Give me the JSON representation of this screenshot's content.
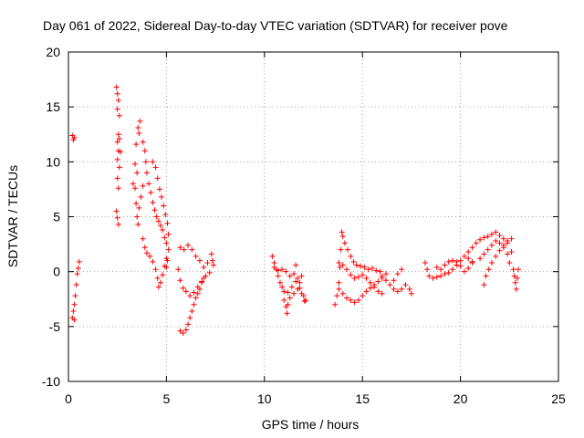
{
  "chart_data": {
    "type": "scatter",
    "title": "Day 061 of 2022, Sidereal Day-to-day VTEC variation (SDTVAR) for receiver pove",
    "xlabel": "GPS time / hours",
    "ylabel": "SDTVAR / TECUs",
    "xlim": [
      0,
      25
    ],
    "ylim": [
      -10,
      20
    ],
    "xticks": [
      "0",
      "5",
      "10",
      "15",
      "20",
      "25"
    ],
    "yticks": [
      "-10",
      "-5",
      "0",
      "5",
      "10",
      "15",
      "20"
    ],
    "xtick_values": [
      0,
      5,
      10,
      15,
      20,
      25
    ],
    "ytick_values": [
      -10,
      -5,
      0,
      5,
      10,
      15,
      20
    ],
    "grid": true,
    "marker": "+",
    "color": "#ff0000",
    "series": [
      {
        "name": "SDTVAR",
        "points": [
          [
            0.2,
            12.4
          ],
          [
            0.25,
            12.0
          ],
          [
            0.3,
            12.2
          ],
          [
            0.2,
            -4.2
          ],
          [
            0.25,
            -3.6
          ],
          [
            0.3,
            -3.0
          ],
          [
            0.35,
            -2.2
          ],
          [
            0.4,
            -1.2
          ],
          [
            0.45,
            -0.2
          ],
          [
            0.5,
            0.3
          ],
          [
            0.55,
            0.9
          ],
          [
            0.3,
            -4.4
          ],
          [
            2.45,
            16.8
          ],
          [
            2.5,
            16.2
          ],
          [
            2.55,
            15.6
          ],
          [
            2.5,
            14.8
          ],
          [
            2.6,
            14.2
          ],
          [
            2.55,
            12.5
          ],
          [
            2.5,
            11.8
          ],
          [
            2.55,
            11.0
          ],
          [
            2.5,
            10.2
          ],
          [
            2.6,
            9.5
          ],
          [
            2.5,
            8.5
          ],
          [
            2.55,
            7.6
          ],
          [
            2.45,
            5.5
          ],
          [
            2.5,
            4.9
          ],
          [
            2.55,
            4.3
          ],
          [
            2.65,
            10.9
          ],
          [
            2.6,
            12.1
          ],
          [
            3.3,
            8.0
          ],
          [
            3.4,
            9.8
          ],
          [
            3.45,
            11.6
          ],
          [
            3.55,
            13.1
          ],
          [
            3.65,
            13.7
          ],
          [
            3.6,
            12.6
          ],
          [
            3.5,
            9.0
          ],
          [
            3.4,
            7.6
          ],
          [
            3.45,
            6.2
          ],
          [
            3.5,
            5.0
          ],
          [
            3.55,
            4.3
          ],
          [
            3.6,
            5.8
          ],
          [
            3.7,
            6.8
          ],
          [
            3.8,
            7.8
          ],
          [
            3.8,
            11.8
          ],
          [
            3.9,
            11.0
          ],
          [
            3.95,
            10.0
          ],
          [
            4.0,
            9.0
          ],
          [
            4.1,
            8.0
          ],
          [
            4.2,
            7.2
          ],
          [
            4.3,
            6.3
          ],
          [
            4.4,
            5.6
          ],
          [
            4.5,
            5.0
          ],
          [
            4.6,
            4.6
          ],
          [
            4.7,
            4.2
          ],
          [
            4.8,
            3.8
          ],
          [
            4.9,
            3.1
          ],
          [
            5.0,
            2.6
          ],
          [
            4.3,
            10.0
          ],
          [
            4.45,
            9.5
          ],
          [
            4.55,
            8.5
          ],
          [
            4.65,
            7.5
          ],
          [
            4.75,
            6.8
          ],
          [
            4.85,
            6.0
          ],
          [
            4.95,
            5.2
          ],
          [
            5.05,
            4.4
          ],
          [
            5.1,
            3.4
          ],
          [
            5.1,
            2.0
          ],
          [
            5.05,
            1.0
          ],
          [
            5.0,
            0.4
          ],
          [
            3.8,
            3.0
          ],
          [
            3.9,
            2.2
          ],
          [
            4.0,
            1.7
          ],
          [
            4.15,
            1.4
          ],
          [
            4.3,
            0.9
          ],
          [
            4.45,
            0.2
          ],
          [
            4.55,
            -0.6
          ],
          [
            4.6,
            -1.4
          ],
          [
            4.7,
            -1.0
          ],
          [
            4.8,
            -0.3
          ],
          [
            4.9,
            0.5
          ],
          [
            5.0,
            1.2
          ],
          [
            5.7,
            2.2
          ],
          [
            5.9,
            2.0
          ],
          [
            6.1,
            2.4
          ],
          [
            6.3,
            2.0
          ],
          [
            6.5,
            1.4
          ],
          [
            6.7,
            1.0
          ],
          [
            6.9,
            0.4
          ],
          [
            7.1,
            0.8
          ],
          [
            7.3,
            1.6
          ],
          [
            7.35,
            1.0
          ],
          [
            5.6,
            0.2
          ],
          [
            5.7,
            -0.8
          ],
          [
            5.85,
            -1.5
          ],
          [
            6.0,
            -1.8
          ],
          [
            6.2,
            -2.2
          ],
          [
            6.4,
            -1.9
          ],
          [
            6.6,
            -1.4
          ],
          [
            6.8,
            -0.9
          ],
          [
            7.0,
            -0.4
          ],
          [
            7.2,
            -0.1
          ],
          [
            7.4,
            0.6
          ],
          [
            5.7,
            -5.4
          ],
          [
            5.85,
            -5.6
          ],
          [
            6.0,
            -5.3
          ],
          [
            6.1,
            -4.8
          ],
          [
            6.2,
            -4.2
          ],
          [
            6.3,
            -3.6
          ],
          [
            6.4,
            -3.0
          ],
          [
            6.5,
            -2.4
          ],
          [
            6.6,
            -2.0
          ],
          [
            6.7,
            -1.6
          ],
          [
            6.8,
            -1.0
          ],
          [
            6.9,
            -0.6
          ],
          [
            10.4,
            1.4
          ],
          [
            10.5,
            0.8
          ],
          [
            10.6,
            0.2
          ],
          [
            10.7,
            -0.4
          ],
          [
            10.8,
            -1.0
          ],
          [
            10.9,
            -1.4
          ],
          [
            11.0,
            -1.8
          ],
          [
            11.2,
            -1.9
          ],
          [
            11.4,
            -1.4
          ],
          [
            11.6,
            -0.9
          ],
          [
            11.8,
            -1.5
          ],
          [
            12.0,
            -2.2
          ],
          [
            12.1,
            -2.6
          ],
          [
            10.5,
            0.4
          ],
          [
            10.7,
            0.1
          ],
          [
            10.9,
            0.2
          ],
          [
            11.1,
            0.0
          ],
          [
            11.3,
            -0.4
          ],
          [
            11.5,
            -0.2
          ],
          [
            11.6,
            0.6
          ],
          [
            11.7,
            -0.6
          ],
          [
            11.8,
            -1.0
          ],
          [
            11.9,
            -0.4
          ],
          [
            11.0,
            -2.6
          ],
          [
            11.1,
            -3.2
          ],
          [
            11.15,
            -3.8
          ],
          [
            11.2,
            -3.0
          ],
          [
            11.3,
            -2.4
          ],
          [
            11.5,
            -2.0
          ],
          [
            11.7,
            -1.6
          ],
          [
            11.9,
            -2.0
          ],
          [
            12.05,
            -2.7
          ],
          [
            13.6,
            -3.0
          ],
          [
            13.7,
            -2.2
          ],
          [
            13.8,
            -1.0
          ],
          [
            13.85,
            0.4
          ],
          [
            13.9,
            2.0
          ],
          [
            13.95,
            3.6
          ],
          [
            14.0,
            3.2
          ],
          [
            14.1,
            2.6
          ],
          [
            14.25,
            2.0
          ],
          [
            14.4,
            1.4
          ],
          [
            14.55,
            0.9
          ],
          [
            14.7,
            0.6
          ],
          [
            14.9,
            0.5
          ],
          [
            15.1,
            0.4
          ],
          [
            15.3,
            0.2
          ],
          [
            15.5,
            0.3
          ],
          [
            15.7,
            0.1
          ],
          [
            15.9,
            0.0
          ],
          [
            13.8,
            0.8
          ],
          [
            14.0,
            0.6
          ],
          [
            14.2,
            0.2
          ],
          [
            14.4,
            -0.3
          ],
          [
            14.6,
            -0.6
          ],
          [
            14.8,
            -0.5
          ],
          [
            15.0,
            -0.3
          ],
          [
            15.2,
            -0.6
          ],
          [
            15.4,
            -1.0
          ],
          [
            15.6,
            -1.4
          ],
          [
            15.8,
            -1.8
          ],
          [
            16.0,
            -2.0
          ],
          [
            13.8,
            -1.6
          ],
          [
            14.0,
            -2.0
          ],
          [
            14.2,
            -2.4
          ],
          [
            14.4,
            -2.6
          ],
          [
            14.6,
            -2.8
          ],
          [
            14.8,
            -2.6
          ],
          [
            15.0,
            -2.2
          ],
          [
            15.2,
            -1.8
          ],
          [
            15.4,
            -1.5
          ],
          [
            15.6,
            -1.2
          ],
          [
            15.8,
            -0.9
          ],
          [
            16.0,
            -0.6
          ],
          [
            16.2,
            -0.2
          ],
          [
            16.0,
            -0.4
          ],
          [
            16.2,
            -0.8
          ],
          [
            16.4,
            -1.2
          ],
          [
            16.6,
            -1.6
          ],
          [
            16.8,
            -1.8
          ],
          [
            17.0,
            -1.6
          ],
          [
            17.2,
            -1.2
          ],
          [
            17.4,
            -1.6
          ],
          [
            17.5,
            -2.0
          ],
          [
            16.6,
            -0.8
          ],
          [
            16.8,
            -0.2
          ],
          [
            17.0,
            0.2
          ],
          [
            18.2,
            0.8
          ],
          [
            18.3,
            0.2
          ],
          [
            18.4,
            -0.4
          ],
          [
            18.6,
            -0.6
          ],
          [
            18.8,
            -0.5
          ],
          [
            19.0,
            -0.4
          ],
          [
            19.2,
            -0.2
          ],
          [
            19.4,
            -0.1
          ],
          [
            19.6,
            0.2
          ],
          [
            19.8,
            0.6
          ],
          [
            20.0,
            1.0
          ],
          [
            20.2,
            1.4
          ],
          [
            20.4,
            1.2
          ],
          [
            20.6,
            0.8
          ],
          [
            18.8,
            0.4
          ],
          [
            19.0,
            0.2
          ],
          [
            19.2,
            0.6
          ],
          [
            19.4,
            0.9
          ],
          [
            19.6,
            1.0
          ],
          [
            19.8,
            0.9
          ],
          [
            20.0,
            0.5
          ],
          [
            20.2,
            0.0
          ],
          [
            20.4,
            0.3
          ],
          [
            20.6,
            0.9
          ],
          [
            20.4,
            1.8
          ],
          [
            20.6,
            2.2
          ],
          [
            20.8,
            2.6
          ],
          [
            21.0,
            2.9
          ],
          [
            21.2,
            3.1
          ],
          [
            21.4,
            3.2
          ],
          [
            21.6,
            3.4
          ],
          [
            21.8,
            3.6
          ],
          [
            22.0,
            3.3
          ],
          [
            22.2,
            3.0
          ],
          [
            22.4,
            2.6
          ],
          [
            22.6,
            1.8
          ],
          [
            21.0,
            1.2
          ],
          [
            21.2,
            1.6
          ],
          [
            21.4,
            2.0
          ],
          [
            21.6,
            2.4
          ],
          [
            21.8,
            2.8
          ],
          [
            22.0,
            2.6
          ],
          [
            22.2,
            2.2
          ],
          [
            22.4,
            1.6
          ],
          [
            22.5,
            0.8
          ],
          [
            21.2,
            -1.2
          ],
          [
            21.3,
            -0.4
          ],
          [
            21.45,
            0.2
          ],
          [
            21.6,
            0.8
          ],
          [
            21.8,
            1.4
          ],
          [
            22.0,
            1.9
          ],
          [
            22.2,
            2.4
          ],
          [
            22.4,
            2.8
          ],
          [
            22.6,
            3.0
          ],
          [
            22.7,
            0.2
          ],
          [
            22.75,
            -0.4
          ],
          [
            22.8,
            -1.0
          ],
          [
            22.85,
            -1.6
          ],
          [
            22.9,
            -0.6
          ],
          [
            22.95,
            0.2
          ]
        ]
      }
    ]
  }
}
